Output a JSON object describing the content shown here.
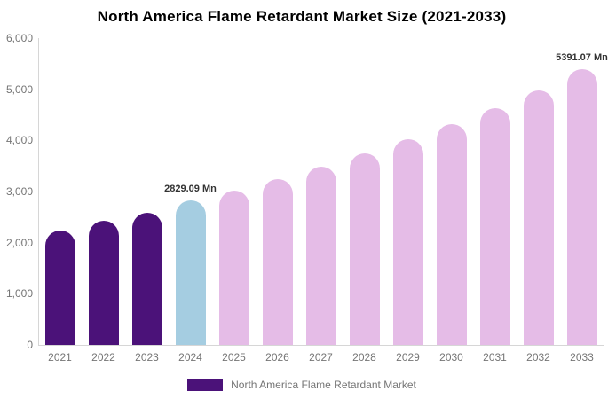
{
  "title": "North America Flame Retardant Market Size (2021-2033)",
  "legend": {
    "label": "North America Flame Retardant Market",
    "swatch_color": "#4B1279"
  },
  "colors": {
    "historical_bar": "#4B1279",
    "base_year_bar": "#A5CDE1",
    "forecast_bar": "#E5BCE7",
    "axis_line": "#D6D6D6",
    "tick_text": "#757575",
    "data_label_text": "#333333"
  },
  "chart_data": {
    "type": "bar",
    "title": "North America Flame Retardant Market Size (2021-2033)",
    "unit": "Mn",
    "categories": [
      2021,
      2022,
      2023,
      2024,
      2025,
      2026,
      2027,
      2028,
      2029,
      2030,
      2031,
      2032,
      2033
    ],
    "values": [
      2240,
      2420,
      2580,
      2829.09,
      3020,
      3250,
      3480,
      3740,
      4030,
      4320,
      4630,
      4980,
      5391.07
    ],
    "bar_colors": [
      "#4B1279",
      "#4B1279",
      "#4B1279",
      "#A5CDE1",
      "#E5BCE7",
      "#E5BCE7",
      "#E5BCE7",
      "#E5BCE7",
      "#E5BCE7",
      "#E5BCE7",
      "#E5BCE7",
      "#E5BCE7",
      "#E5BCE7"
    ],
    "data_labels": {
      "2024": "2829.09 Mn",
      "2033": "5391.07 Mn"
    },
    "ylim": [
      0,
      6000
    ],
    "y_tick_labels": [
      "0",
      "1,000",
      "2,000",
      "3,000",
      "4,000",
      "5,000",
      "6,000"
    ],
    "xlabel": "",
    "ylabel": "",
    "grid": false,
    "legend_position": "bottom"
  }
}
